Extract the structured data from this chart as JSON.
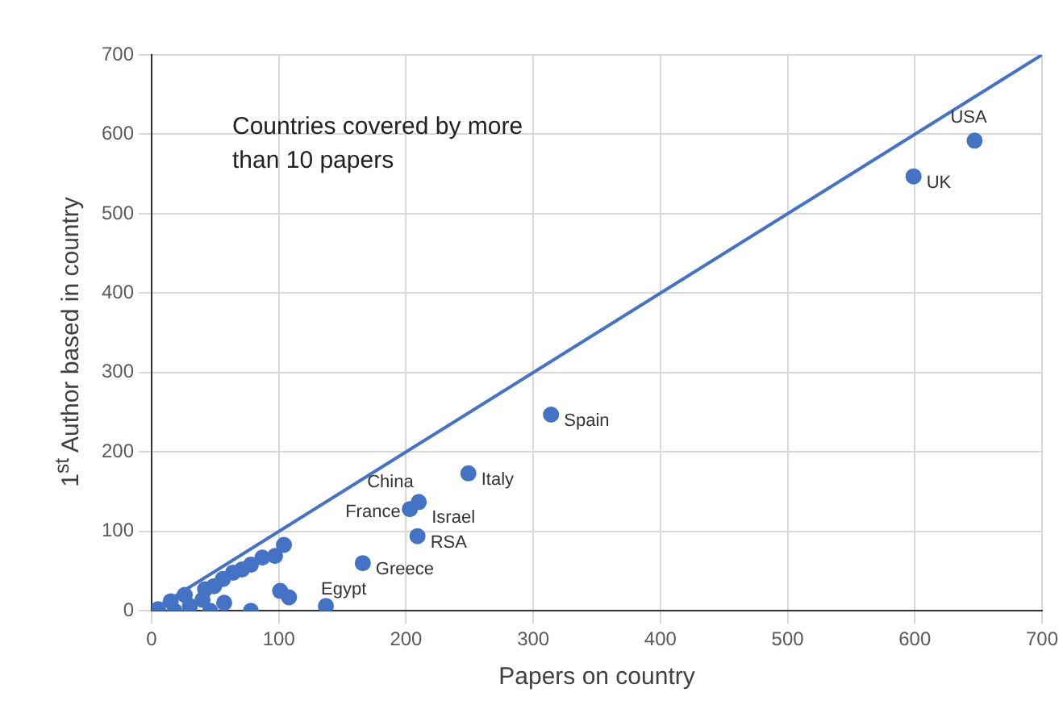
{
  "chart_data": {
    "type": "scatter",
    "xlabel": "Papers on country",
    "ylabel": "1$^{st}$ Author based in country",
    "xlim": [
      0,
      700
    ],
    "ylim": [
      0,
      700
    ],
    "xticks": [
      0,
      100,
      200,
      300,
      400,
      500,
      600,
      700
    ],
    "yticks": [
      0,
      100,
      200,
      300,
      400,
      500,
      600,
      700
    ],
    "grid": true,
    "legend": false,
    "marker": "circle",
    "series": [
      {
        "color": "#4472c4",
        "x": [
          5,
          15,
          18,
          26,
          30,
          40,
          46,
          647,
          599,
          314,
          249,
          210,
          203,
          209,
          166,
          137,
          104,
          97,
          87,
          78,
          71,
          64,
          56,
          49,
          42,
          101,
          108,
          78,
          57
        ],
        "values": [
          2,
          12,
          0,
          20,
          6,
          14,
          0,
          592,
          547,
          247,
          173,
          137,
          128,
          94,
          60,
          6,
          83,
          69,
          67,
          58,
          52,
          48,
          40,
          31,
          27,
          25,
          17,
          0,
          10
        ]
      },
      {
        "type": "line",
        "color": "#4472c4",
        "marker": "none",
        "x": [
          0,
          700
        ],
        "values": [
          0,
          700
        ]
      }
    ],
    "annotations": [
      "Countries covered by more than 10 papers",
      {
        "text": "USA",
        "x": 647,
        "y": 592
      },
      {
        "text": "UK",
        "x": 599,
        "y": 547
      },
      {
        "text": "Spain",
        "x": 314,
        "y": 247
      },
      {
        "text": "Italy",
        "x": 249,
        "y": 173
      },
      {
        "text": "China",
        "x": 210,
        "y": 137
      },
      {
        "text": "France",
        "x": 203,
        "y": 128
      },
      {
        "text": "Israel",
        "x": 210,
        "y": 137
      },
      {
        "text": "RSA",
        "x": 209,
        "y": 94
      },
      {
        "text": "Greece",
        "x": 166,
        "y": 60
      },
      {
        "text": "Egypt",
        "x": 137,
        "y": 6
      }
    ]
  }
}
